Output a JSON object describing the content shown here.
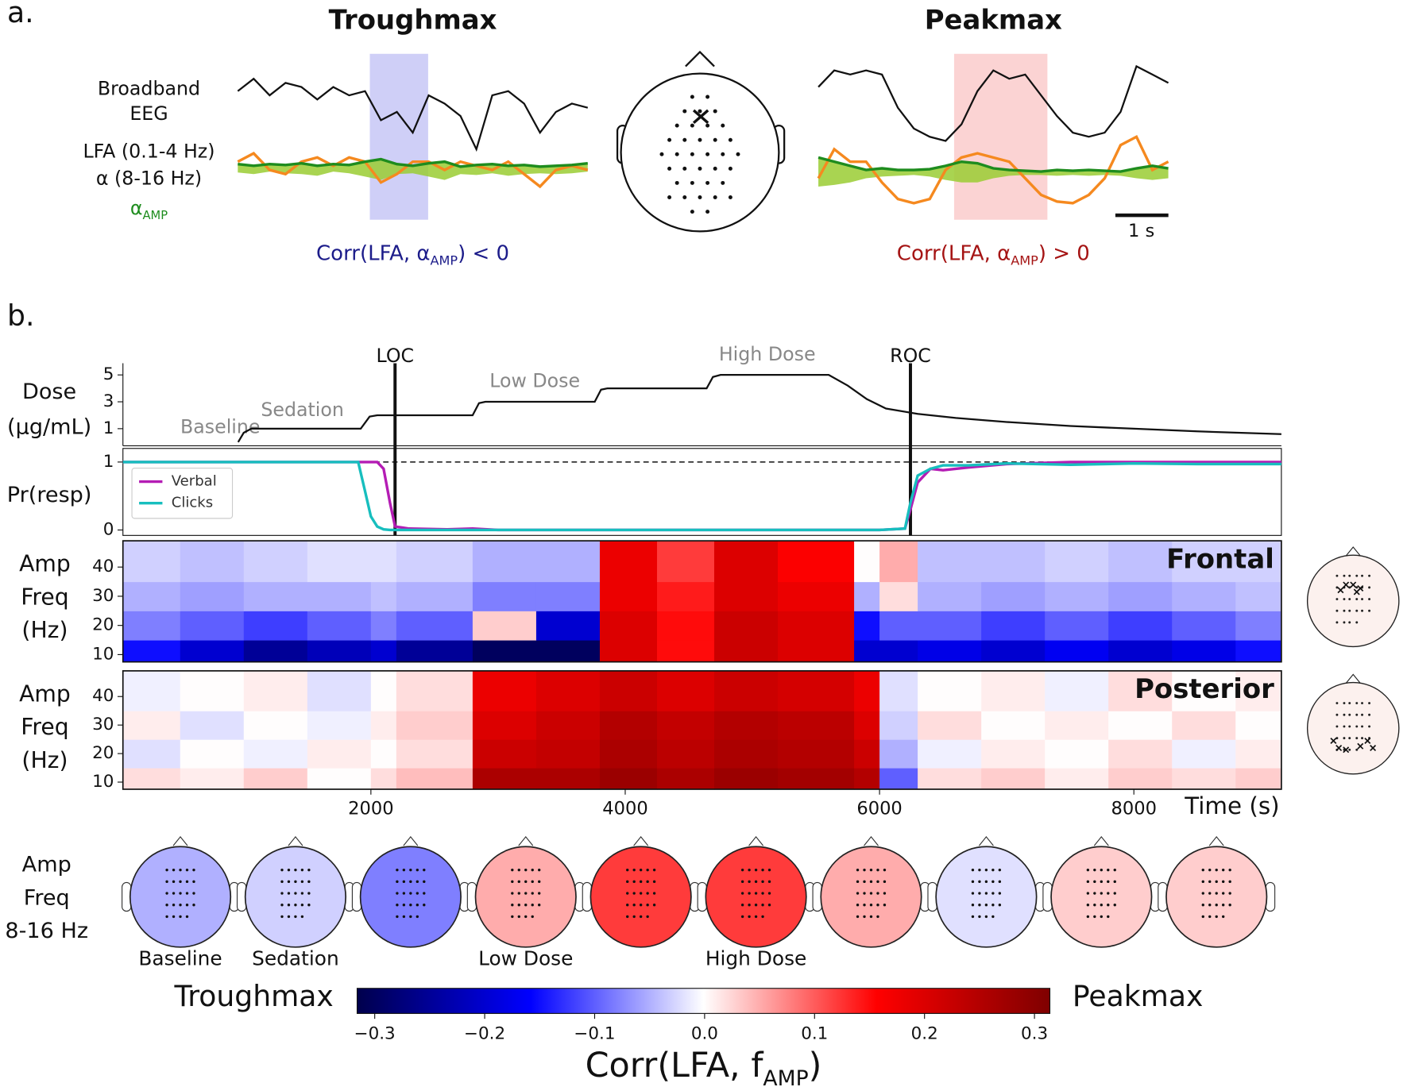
{
  "panel_labels": [
    "a.",
    "b."
  ],
  "chart_data": [
    {
      "type": "trace",
      "title": "Troughmax",
      "title_color": "#1c1c8a",
      "xlim": [
        0,
        6.6
      ],
      "ylim": [
        -1,
        1
      ],
      "highlight": [
        2.49,
        3.59
      ],
      "highlight_color": "#cfcff7",
      "x": [
        0,
        0.3,
        0.6,
        0.9,
        1.2,
        1.5,
        1.8,
        2.1,
        2.4,
        2.7,
        3.0,
        3.3,
        3.6,
        3.9,
        4.2,
        4.5,
        4.8,
        5.1,
        5.4,
        5.7,
        6.0,
        6.3,
        6.6
      ],
      "series": [
        {
          "name": [
            "Broadband",
            "EEG"
          ],
          "color": "#111111",
          "values": [
            0.55,
            0.7,
            0.5,
            0.65,
            0.6,
            0.45,
            0.6,
            0.5,
            0.55,
            0.2,
            0.3,
            0.05,
            0.5,
            0.4,
            0.25,
            -0.15,
            0.5,
            0.55,
            0.4,
            0.05,
            0.3,
            0.4,
            0.35
          ]
        },
        {
          "name": "LFA (0.1-4 Hz)",
          "color": "#f5891f",
          "values": [
            -0.3,
            -0.2,
            -0.4,
            -0.45,
            -0.3,
            -0.25,
            -0.35,
            -0.25,
            -0.3,
            -0.55,
            -0.45,
            -0.3,
            -0.3,
            -0.4,
            -0.3,
            -0.35,
            -0.4,
            -0.3,
            -0.45,
            -0.6,
            -0.4,
            -0.35,
            -0.4
          ]
        },
        {
          "name": "α (8-16 Hz)",
          "color": "#9acd32",
          "values": [
            -0.43,
            -0.45,
            -0.42,
            -0.44,
            -0.45,
            -0.47,
            -0.42,
            -0.44,
            -0.48,
            -0.52,
            -0.45,
            -0.44,
            -0.48,
            -0.52,
            -0.45,
            -0.46,
            -0.44,
            -0.47,
            -0.45,
            -0.44,
            -0.45,
            -0.44,
            -0.42
          ]
        },
        {
          "name": {
            "text": "α",
            "sub": "AMP"
          },
          "color": "#1e8c1e",
          "values": [
            -0.33,
            -0.35,
            -0.33,
            -0.34,
            -0.32,
            -0.35,
            -0.33,
            -0.34,
            -0.3,
            -0.27,
            -0.33,
            -0.35,
            -0.32,
            -0.3,
            -0.36,
            -0.34,
            -0.33,
            -0.35,
            -0.34,
            -0.36,
            -0.35,
            -0.34,
            -0.32
          ]
        }
      ],
      "caption": {
        "text": "Corr(LFA, α",
        "sub": "AMP",
        "tail": ") < 0"
      }
    },
    {
      "type": "trace",
      "title": "Peakmax",
      "title_color": "#a51414",
      "xlim": [
        0,
        6.6
      ],
      "ylim": [
        -1,
        1
      ],
      "highlight": [
        2.56,
        4.32
      ],
      "highlight_color": "#fbd3d3",
      "x": [
        0,
        0.3,
        0.6,
        0.9,
        1.2,
        1.5,
        1.8,
        2.1,
        2.4,
        2.7,
        3.0,
        3.3,
        3.6,
        3.9,
        4.2,
        4.5,
        4.8,
        5.1,
        5.4,
        5.7,
        6.0,
        6.3,
        6.6
      ],
      "series": [
        {
          "color": "#111111",
          "values": [
            0.6,
            0.8,
            0.75,
            0.8,
            0.75,
            0.35,
            0.1,
            0.0,
            -0.05,
            0.15,
            0.55,
            0.8,
            0.7,
            0.75,
            0.5,
            0.25,
            0.05,
            0.0,
            0.05,
            0.3,
            0.85,
            0.75,
            0.65
          ]
        },
        {
          "color": "#f5891f",
          "values": [
            -0.5,
            -0.15,
            -0.3,
            -0.3,
            -0.55,
            -0.75,
            -0.8,
            -0.75,
            -0.4,
            -0.25,
            -0.2,
            -0.25,
            -0.3,
            -0.5,
            -0.7,
            -0.78,
            -0.8,
            -0.7,
            -0.5,
            -0.1,
            0.0,
            -0.4,
            -0.3
          ]
        },
        {
          "color": "#9acd32",
          "values": [
            -0.6,
            -0.58,
            -0.55,
            -0.5,
            -0.48,
            -0.47,
            -0.46,
            -0.48,
            -0.52,
            -0.55,
            -0.55,
            -0.5,
            -0.47,
            -0.46,
            -0.46,
            -0.47,
            -0.46,
            -0.47,
            -0.46,
            -0.47,
            -0.5,
            -0.52,
            -0.5
          ]
        },
        {
          "color": "#1e8c1e",
          "values": [
            -0.25,
            -0.3,
            -0.35,
            -0.4,
            -0.38,
            -0.4,
            -0.4,
            -0.39,
            -0.35,
            -0.3,
            -0.32,
            -0.38,
            -0.4,
            -0.41,
            -0.42,
            -0.4,
            -0.41,
            -0.4,
            -0.41,
            -0.42,
            -0.38,
            -0.35,
            -0.38
          ]
        }
      ],
      "caption": {
        "text": "Corr(LFA, α",
        "sub": "AMP",
        "tail": ") > 0"
      },
      "scale_bar": {
        "value": 1,
        "label": "1 s"
      }
    },
    {
      "type": "line",
      "ylabel": [
        "Dose",
        "(µg/mL)"
      ],
      "xlim": [
        50,
        9160
      ],
      "ylim": [
        -0.27,
        5.87
      ],
      "yticks": [
        1,
        3,
        5
      ],
      "x": [
        956,
        1000,
        1060,
        1920,
        1990,
        2050,
        2800,
        2850,
        2900,
        3760,
        3810,
        3860,
        4640,
        4690,
        4750,
        5600,
        5750,
        5900,
        6050,
        6300,
        6600,
        7000,
        7500,
        8000,
        8500,
        9160
      ],
      "series": [
        {
          "color": "#111111",
          "values": [
            0,
            0.7,
            1,
            1,
            1.9,
            2,
            2,
            2.9,
            3,
            3,
            3.9,
            4,
            4,
            4.85,
            5,
            5,
            4.2,
            3.2,
            2.5,
            2.1,
            1.8,
            1.5,
            1.2,
            1.0,
            0.8,
            0.6
          ]
        }
      ],
      "events": [
        {
          "label": "LOC",
          "x": 2190
        },
        {
          "label": "ROC",
          "x": 6243
        }
      ],
      "phases": [
        "Baseline",
        "Sedation",
        "Low Dose",
        "High Dose"
      ]
    },
    {
      "type": "line",
      "ylabel": "Pr(resp)",
      "xlim": [
        50,
        9160
      ],
      "ylim": [
        -0.08,
        1.2
      ],
      "yticks": [
        0,
        1
      ],
      "hline": 1,
      "legend": "upper left",
      "x": [
        50,
        500,
        1000,
        1500,
        1900,
        1950,
        2000,
        2050,
        2100,
        2150,
        2190,
        2300,
        2600,
        2800,
        3000,
        4000,
        5000,
        6000,
        6200,
        6243,
        6300,
        6400,
        6500,
        6700,
        7000,
        7500,
        8000,
        8500,
        9160
      ],
      "series": [
        {
          "name": "Verbal",
          "color": "#b41cb4",
          "values": [
            1,
            1,
            1,
            1,
            1,
            1,
            1,
            1,
            0.9,
            0.4,
            0.05,
            0.02,
            0.01,
            0.02,
            0,
            0,
            0,
            0,
            0.02,
            0.3,
            0.7,
            0.9,
            0.88,
            0.92,
            0.97,
            1,
            1,
            1,
            1
          ]
        },
        {
          "name": "Clicks",
          "color": "#17bebe",
          "values": [
            1,
            1,
            1,
            1,
            1,
            0.6,
            0.2,
            0.05,
            0.01,
            0,
            0,
            0,
            0,
            0,
            0,
            0,
            0,
            0,
            0.02,
            0.4,
            0.8,
            0.9,
            0.95,
            0.95,
            0.98,
            0.96,
            0.98,
            0.97,
            0.97
          ]
        }
      ]
    },
    {
      "type": "heatmap",
      "label": "Frontal",
      "ylabel": [
        "Amp",
        "Freq",
        "(Hz)"
      ],
      "xlim": [
        50,
        9160
      ],
      "ylim": [
        7.5,
        49
      ],
      "yticks": [
        10,
        20,
        30,
        40
      ],
      "xbins": [
        50,
        500,
        1000,
        1500,
        2000,
        2200,
        2800,
        3300,
        3800,
        4250,
        4700,
        5200,
        5800,
        6000,
        6300,
        6800,
        7300,
        7800,
        8300,
        8800,
        9160
      ],
      "ybins": [
        7.5,
        15,
        25,
        35,
        49
      ],
      "values": [
        [
          -0.15,
          -0.2,
          -0.25,
          -0.22,
          -0.2,
          -0.25,
          -0.3,
          -0.3,
          0.2,
          0.15,
          0.22,
          0.2,
          -0.2,
          -0.2,
          -0.18,
          -0.2,
          -0.17,
          -0.2,
          -0.18,
          -0.15
        ],
        [
          -0.08,
          -0.1,
          -0.12,
          -0.1,
          -0.08,
          -0.1,
          0.03,
          -0.2,
          0.2,
          0.15,
          0.22,
          0.2,
          -0.15,
          -0.1,
          -0.1,
          -0.12,
          -0.1,
          -0.12,
          -0.1,
          -0.08
        ],
        [
          -0.05,
          -0.06,
          -0.05,
          -0.05,
          -0.04,
          -0.05,
          -0.08,
          -0.08,
          0.18,
          0.14,
          0.2,
          0.18,
          -0.05,
          0.02,
          -0.05,
          -0.06,
          -0.05,
          -0.06,
          -0.05,
          -0.04
        ],
        [
          -0.03,
          -0.04,
          -0.03,
          -0.02,
          -0.02,
          -0.03,
          -0.05,
          -0.05,
          0.18,
          0.12,
          0.2,
          0.16,
          0,
          0.05,
          -0.04,
          -0.04,
          -0.03,
          -0.04,
          -0.03,
          -0.03
        ]
      ]
    },
    {
      "type": "heatmap",
      "label": "Posterior",
      "ylabel": [
        "Amp",
        "Freq",
        "(Hz)"
      ],
      "xlim": [
        50,
        9160
      ],
      "ylim": [
        7.5,
        49
      ],
      "yticks": [
        10,
        20,
        30,
        40
      ],
      "xticks": [
        2000,
        4000,
        6000,
        8000
      ],
      "xlabel": "Time (s)",
      "xbins": [
        50,
        500,
        1000,
        1500,
        2000,
        2200,
        2800,
        3300,
        3800,
        4250,
        4700,
        5200,
        5800,
        6000,
        6300,
        6800,
        7300,
        7800,
        8300,
        8800,
        9160
      ],
      "ybins": [
        7.5,
        15,
        25,
        35,
        49
      ],
      "values": [
        [
          0.02,
          0.01,
          0.03,
          0.0,
          0.02,
          0.04,
          0.26,
          0.26,
          0.28,
          0.26,
          0.28,
          0.27,
          0.25,
          -0.1,
          0.02,
          0.03,
          0.01,
          0.03,
          0.02,
          0.03
        ],
        [
          -0.02,
          0.0,
          -0.01,
          0.01,
          0.0,
          0.02,
          0.22,
          0.23,
          0.26,
          0.24,
          0.26,
          0.25,
          0.22,
          -0.05,
          -0.01,
          0.01,
          0.0,
          0.02,
          -0.01,
          0.01
        ],
        [
          0.01,
          -0.02,
          0.0,
          -0.01,
          0.01,
          0.03,
          0.2,
          0.22,
          0.25,
          0.23,
          0.25,
          0.24,
          0.2,
          -0.03,
          0.02,
          0.0,
          0.01,
          0.0,
          0.02,
          0.0
        ],
        [
          -0.01,
          0.0,
          0.01,
          -0.02,
          0.0,
          0.02,
          0.18,
          0.2,
          0.22,
          0.2,
          0.22,
          0.21,
          0.18,
          -0.02,
          0.0,
          0.01,
          -0.01,
          0.02,
          0.0,
          0.01
        ]
      ]
    },
    {
      "type": "topomap",
      "ylabel": [
        "Amp",
        "Freq",
        "8-16 Hz"
      ],
      "values": [
        -0.05,
        -0.03,
        -0.08,
        0.05,
        0.12,
        0.12,
        0.05,
        -0.02,
        0.03,
        0.03
      ],
      "labels": [
        "Baseline",
        "Sedation",
        null,
        "Low Dose",
        null,
        "High Dose",
        null,
        null,
        null,
        null
      ]
    },
    {
      "type": "colorbar",
      "left_label": "Troughmax",
      "right_label": "Peakmax",
      "label": {
        "text": "Corr(LFA, f",
        "sub": "AMP",
        "tail": ")"
      },
      "clim": [
        -0.316,
        0.314
      ],
      "colorscale": [
        "#00004c",
        "#0000ff",
        "#ffffff",
        "#ff0000",
        "#7f0000"
      ],
      "xticks": [
        {
          "value": -0.3,
          "label": "−0.3"
        },
        {
          "value": -0.2,
          "label": "−0.2"
        },
        {
          "value": -0.1,
          "label": "−0.1"
        },
        {
          "value": 0,
          "label": "0.0"
        },
        0.1,
        0.2,
        0.3
      ]
    }
  ]
}
